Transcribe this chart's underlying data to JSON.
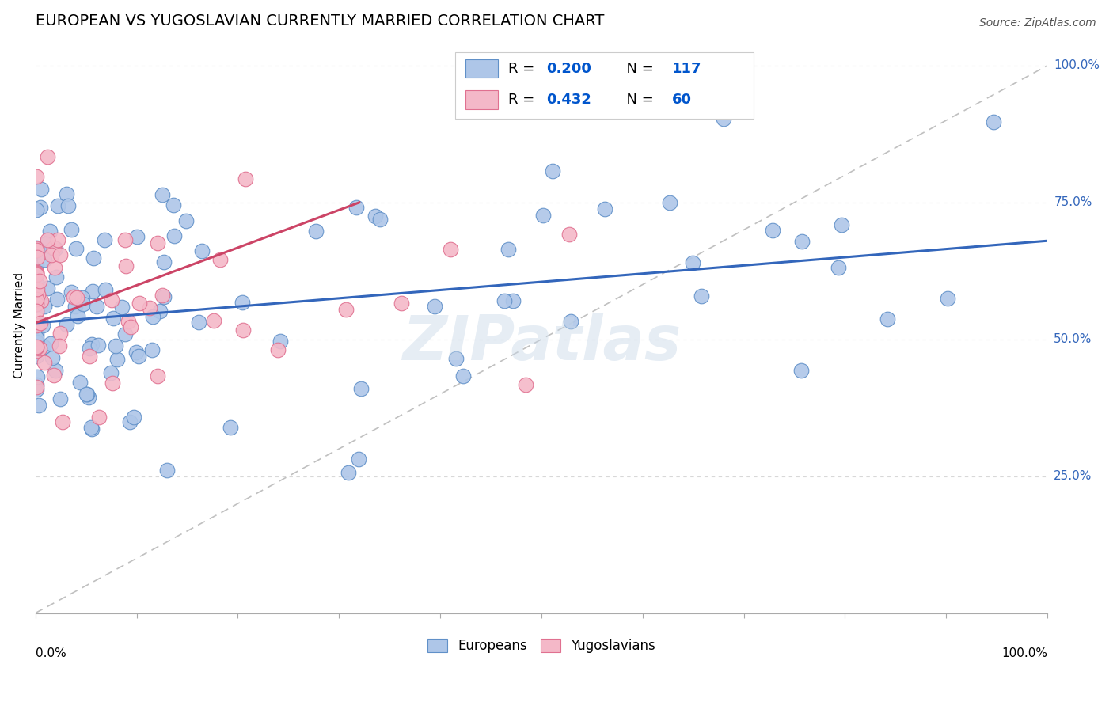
{
  "title": "EUROPEAN VS YUGOSLAVIAN CURRENTLY MARRIED CORRELATION CHART",
  "source": "Source: ZipAtlas.com",
  "ylabel": "Currently Married",
  "ytick_labels": [
    "25.0%",
    "50.0%",
    "75.0%",
    "100.0%"
  ],
  "ytick_values": [
    0.25,
    0.5,
    0.75,
    1.0
  ],
  "european_color": "#aec6e8",
  "yugoslav_color": "#f4b8c8",
  "european_edge": "#6090c8",
  "yugoslav_edge": "#e07090",
  "trend_blue": "#3366bb",
  "trend_pink": "#cc4466",
  "trend_gray": "#c0c0c0",
  "background": "#ffffff",
  "grid_color": "#d8d8d8",
  "watermark_color": "#c8d8e8",
  "title_fontsize": 14,
  "source_fontsize": 10,
  "label_fontsize": 11,
  "legend_r_color": "#0055cc",
  "legend_n_color": "#0055cc",
  "xlim": [
    0.0,
    1.0
  ],
  "ylim": [
    0.0,
    1.05
  ],
  "eu_trend_x": [
    0.0,
    1.0
  ],
  "eu_trend_y": [
    0.53,
    0.68
  ],
  "yu_trend_x": [
    0.0,
    0.32
  ],
  "yu_trend_y": [
    0.53,
    0.75
  ],
  "gray_line_x": [
    0.0,
    1.0
  ],
  "gray_line_y": [
    0.0,
    1.0
  ]
}
